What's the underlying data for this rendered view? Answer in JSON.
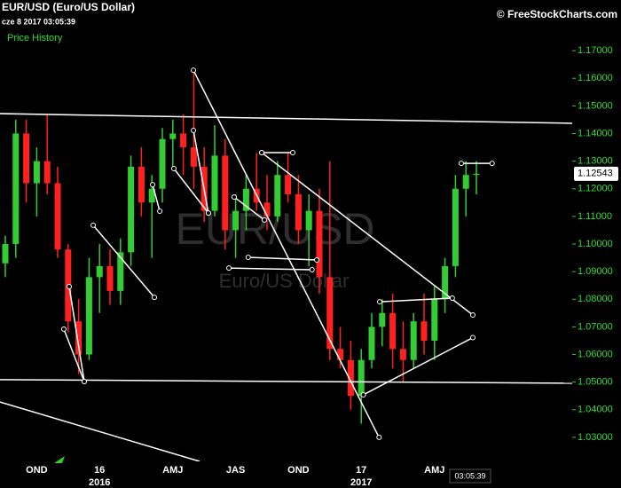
{
  "chart_data": {
    "type": "candlestick",
    "title": "EUR/USD (Euro/US Dollar)",
    "subtitle": "cze 8 2017 03:05:39",
    "source": "© FreeStockCharts.com",
    "legend": "Price History",
    "watermark": "EUR/USD",
    "watermark_sub": "Euro/US Dollar",
    "cursor_time": "03:05:39",
    "up_color": "#33cc33",
    "down_color": "#ff2020",
    "categories": [
      null,
      null,
      null,
      "OND",
      null,
      null,
      null,
      null,
      null,
      "16",
      null,
      null,
      null,
      null,
      null,
      null,
      "AMJ",
      null,
      null,
      null,
      null,
      null,
      "JAS",
      null,
      null,
      null,
      null,
      null,
      "OND",
      null,
      null,
      null,
      null,
      null,
      "17",
      null,
      null,
      null,
      null,
      null,
      null,
      "AMJ",
      null,
      null,
      null,
      null
    ],
    "years": [
      null,
      null,
      null,
      null,
      null,
      null,
      null,
      null,
      null,
      "2016",
      null,
      null,
      null,
      null,
      null,
      null,
      null,
      null,
      null,
      null,
      null,
      null,
      null,
      null,
      null,
      null,
      null,
      null,
      null,
      null,
      null,
      null,
      null,
      null,
      "2017",
      null,
      null,
      null,
      null,
      null,
      null,
      null,
      null,
      null,
      null,
      null
    ],
    "open": [
      1.093,
      1.1,
      1.14,
      1.122,
      1.13,
      1.122,
      1.098,
      1.072,
      1.06,
      1.088,
      1.092,
      1.083,
      1.097,
      1.128,
      1.115,
      1.12,
      1.138,
      1.14,
      1.135,
      1.128,
      1.112,
      1.132,
      1.105,
      1.112,
      1.12,
      1.115,
      1.11,
      1.125,
      1.118,
      1.105,
      1.112,
      1.088,
      1.062,
      1.058,
      1.045,
      1.058,
      1.07,
      1.075,
      1.062,
      1.058,
      1.072,
      1.065,
      1.08,
      1.092,
      1.12,
      1.125
    ],
    "high": [
      1.103,
      1.145,
      1.145,
      1.135,
      1.147,
      1.128,
      1.1,
      1.08,
      1.095,
      1.1,
      1.098,
      1.102,
      1.132,
      1.135,
      1.125,
      1.142,
      1.145,
      1.147,
      1.163,
      1.135,
      1.143,
      1.138,
      1.118,
      1.125,
      1.133,
      1.125,
      1.13,
      1.133,
      1.125,
      1.118,
      1.12,
      1.13,
      1.07,
      1.065,
      1.062,
      1.075,
      1.08,
      1.082,
      1.072,
      1.075,
      1.082,
      1.085,
      1.095,
      1.125,
      1.13,
      1.13
    ],
    "low": [
      1.088,
      1.095,
      1.115,
      1.11,
      1.118,
      1.095,
      1.068,
      1.053,
      1.058,
      1.075,
      1.078,
      1.078,
      1.092,
      1.11,
      1.095,
      1.115,
      1.128,
      1.125,
      1.12,
      1.108,
      1.11,
      1.098,
      1.095,
      1.105,
      1.112,
      1.105,
      1.108,
      1.115,
      1.1,
      1.092,
      1.082,
      1.058,
      1.055,
      1.04,
      1.035,
      1.055,
      1.063,
      1.055,
      1.05,
      1.055,
      1.06,
      1.058,
      1.075,
      1.088,
      1.11,
      1.118
    ],
    "close": [
      1.1,
      1.14,
      1.122,
      1.13,
      1.122,
      1.098,
      1.072,
      1.06,
      1.088,
      1.092,
      1.083,
      1.097,
      1.128,
      1.115,
      1.12,
      1.138,
      1.14,
      1.135,
      1.128,
      1.112,
      1.132,
      1.105,
      1.112,
      1.12,
      1.115,
      1.11,
      1.125,
      1.118,
      1.105,
      1.112,
      1.088,
      1.062,
      1.058,
      1.045,
      1.058,
      1.07,
      1.075,
      1.062,
      1.058,
      1.072,
      1.065,
      1.08,
      1.092,
      1.12,
      1.125,
      1.12543
    ],
    "ylim": [
      1.0213,
      1.1787
    ],
    "yticks": [
      {
        "value": 1.03,
        "label": "1.03000"
      },
      {
        "value": 1.04,
        "label": "1.04000"
      },
      {
        "value": 1.05,
        "label": "1.05000"
      },
      {
        "value": 1.06,
        "label": "1.06000"
      },
      {
        "value": 1.07,
        "label": "1.07000"
      },
      {
        "value": 1.08,
        "label": "1.08000"
      },
      {
        "value": 1.09,
        "label": "1.09000"
      },
      {
        "value": 1.1,
        "label": "1.10000"
      },
      {
        "value": 1.11,
        "label": "1.11000"
      },
      {
        "value": 1.12,
        "label": "1.12000"
      },
      {
        "value": 1.13,
        "label": "1.13000"
      },
      {
        "value": 1.14,
        "label": "1.14000"
      },
      {
        "value": 1.15,
        "label": "1.15000"
      },
      {
        "value": 1.16,
        "label": "1.16000"
      },
      {
        "value": 1.17,
        "label": "1.17000"
      }
    ],
    "trendlines": [
      {
        "x1": -0.51,
        "y1": 1.1472,
        "x2": 54.2,
        "y2": 1.1437,
        "points": false
      },
      {
        "x1": -0.51,
        "y1": 1.0509,
        "x2": 54.2,
        "y2": 1.0496,
        "points": false
      },
      {
        "x1": -0.51,
        "y1": 1.0428,
        "x2": 18.56,
        "y2": 1.0213,
        "points": false
      },
      {
        "x1": 17.97,
        "y1": 1.1629,
        "x2": 35.7,
        "y2": 1.03,
        "points": true
      },
      {
        "x1": 24.49,
        "y1": 1.1331,
        "x2": 44.66,
        "y2": 1.0743,
        "points": true
      },
      {
        "x1": 43.56,
        "y1": 1.1292,
        "x2": 46.5,
        "y2": 1.1292,
        "points": true
      },
      {
        "x1": 35.76,
        "y1": 1.0791,
        "x2": 42.7,
        "y2": 1.0804,
        "points": true
      },
      {
        "x1": 34.2,
        "y1": 1.0454,
        "x2": 44.66,
        "y2": 1.0661,
        "points": true
      },
      {
        "x1": 8.39,
        "y1": 1.1068,
        "x2": 14.24,
        "y2": 1.0807,
        "points": true
      },
      {
        "x1": 6.1,
        "y1": 1.0846,
        "x2": 7.54,
        "y2": 1.0502,
        "points": true
      },
      {
        "x1": 5.59,
        "y1": 1.0692,
        "x2": 7.54,
        "y2": 1.0502,
        "points": true
      },
      {
        "x1": 16.1,
        "y1": 1.1273,
        "x2": 19.4,
        "y2": 1.1112,
        "points": true
      },
      {
        "x1": 17.97,
        "y1": 1.1411,
        "x2": 19.4,
        "y2": 1.1112,
        "points": true
      },
      {
        "x1": 21.36,
        "y1": 1.0913,
        "x2": 29.3,
        "y2": 1.0907,
        "points": true
      },
      {
        "x1": 23.2,
        "y1": 1.0952,
        "x2": 29.75,
        "y2": 1.0942,
        "points": true
      },
      {
        "x1": 21.86,
        "y1": 1.117,
        "x2": 24.75,
        "y2": 1.1087,
        "points": true
      },
      {
        "x1": 14.07,
        "y1": 1.1215,
        "x2": 14.75,
        "y2": 1.1119,
        "points": true
      },
      {
        "x1": 24.49,
        "y1": 1.1331,
        "x2": 27.46,
        "y2": 1.1331,
        "points": true
      }
    ]
  }
}
